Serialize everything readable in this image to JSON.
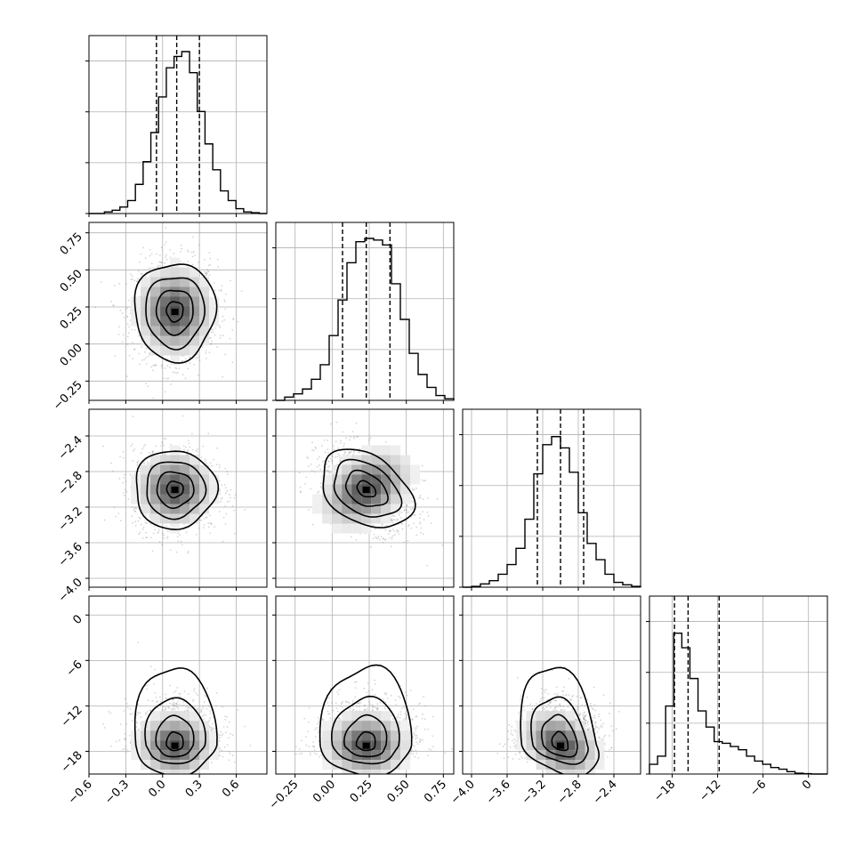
{
  "chart_data": {
    "type": "corner",
    "grid": true,
    "parameters": [
      {
        "range": [
          -0.6,
          0.85
        ],
        "ticks": [
          -0.6,
          -0.3,
          0.0,
          0.3,
          0.6
        ],
        "tick_labels": [
          "−0.6",
          "−0.3",
          "0.0",
          "0.3",
          "0.6"
        ],
        "quantiles": [
          -0.05,
          0.115,
          0.3
        ],
        "hist_edges_range": [
          -0.6,
          0.85
        ],
        "hist": [
          0.0,
          0.0,
          0.01,
          0.02,
          0.04,
          0.08,
          0.18,
          0.32,
          0.5,
          0.72,
          0.9,
          0.97,
          1.0,
          0.87,
          0.63,
          0.43,
          0.27,
          0.14,
          0.08,
          0.03,
          0.01,
          0.005,
          0.0
        ],
        "peak_count_ratio": 1.0
      },
      {
        "range": [
          -0.38,
          0.82
        ],
        "ticks": [
          -0.25,
          0.0,
          0.25,
          0.5,
          0.75
        ],
        "tick_labels": [
          "−0.25",
          "0.00",
          "0.25",
          "0.50",
          "0.75"
        ],
        "quantiles": [
          0.07,
          0.23,
          0.39
        ],
        "hist": [
          0.0,
          0.02,
          0.04,
          0.07,
          0.13,
          0.22,
          0.4,
          0.62,
          0.85,
          0.98,
          1.0,
          0.99,
          0.96,
          0.72,
          0.5,
          0.29,
          0.16,
          0.08,
          0.03,
          0.01
        ]
      },
      {
        "range": [
          -4.1,
          -2.1
        ],
        "ticks": [
          -4.0,
          -3.6,
          -3.2,
          -2.8,
          -2.4
        ],
        "tick_labels": [
          "−4.0",
          "−3.6",
          "−3.2",
          "−2.8",
          "−2.4"
        ],
        "quantiles": [
          -3.26,
          -3.0,
          -2.74
        ],
        "hist": [
          0.0,
          0.005,
          0.02,
          0.04,
          0.08,
          0.14,
          0.24,
          0.42,
          0.7,
          0.88,
          0.93,
          0.86,
          0.71,
          0.46,
          0.27,
          0.17,
          0.08,
          0.03,
          0.015,
          0.005
        ]
      },
      {
        "range": [
          -21.0,
          2.5
        ],
        "ticks": [
          -18,
          -12,
          -6,
          0
        ],
        "tick_labels": [
          "−18",
          "−12",
          "−6",
          "0"
        ],
        "quantiles": [
          -17.7,
          -15.9,
          -11.8
        ],
        "hist": [
          0.06,
          0.11,
          0.42,
          0.87,
          0.78,
          0.59,
          0.39,
          0.29,
          0.2,
          0.19,
          0.17,
          0.15,
          0.11,
          0.08,
          0.06,
          0.04,
          0.03,
          0.015,
          0.005,
          0.002,
          0.0,
          0.0
        ]
      }
    ],
    "pairs": [
      {
        "row": 1,
        "col": 0,
        "center": [
          0.1,
          0.22
        ],
        "sigma": [
          0.15,
          0.15
        ],
        "rho": 0.0
      },
      {
        "row": 2,
        "col": 0,
        "center": [
          0.1,
          -3.0
        ],
        "sigma": [
          0.15,
          0.2
        ],
        "rho": 0.0
      },
      {
        "row": 2,
        "col": 1,
        "center": [
          0.23,
          -3.0
        ],
        "sigma": [
          0.14,
          0.2
        ],
        "rho": -0.35
      },
      {
        "row": 3,
        "col": 0,
        "center": [
          0.1,
          -15.5
        ],
        "sigma": [
          0.15,
          3.5
        ],
        "rho": 0.0
      },
      {
        "row": 3,
        "col": 1,
        "center": [
          0.23,
          -15.5
        ],
        "sigma": [
          0.14,
          3.5
        ],
        "rho": 0.0
      },
      {
        "row": 3,
        "col": 2,
        "center": [
          -3.0,
          -15.5
        ],
        "sigma": [
          0.2,
          3.5
        ],
        "rho": 0.3
      }
    ]
  }
}
